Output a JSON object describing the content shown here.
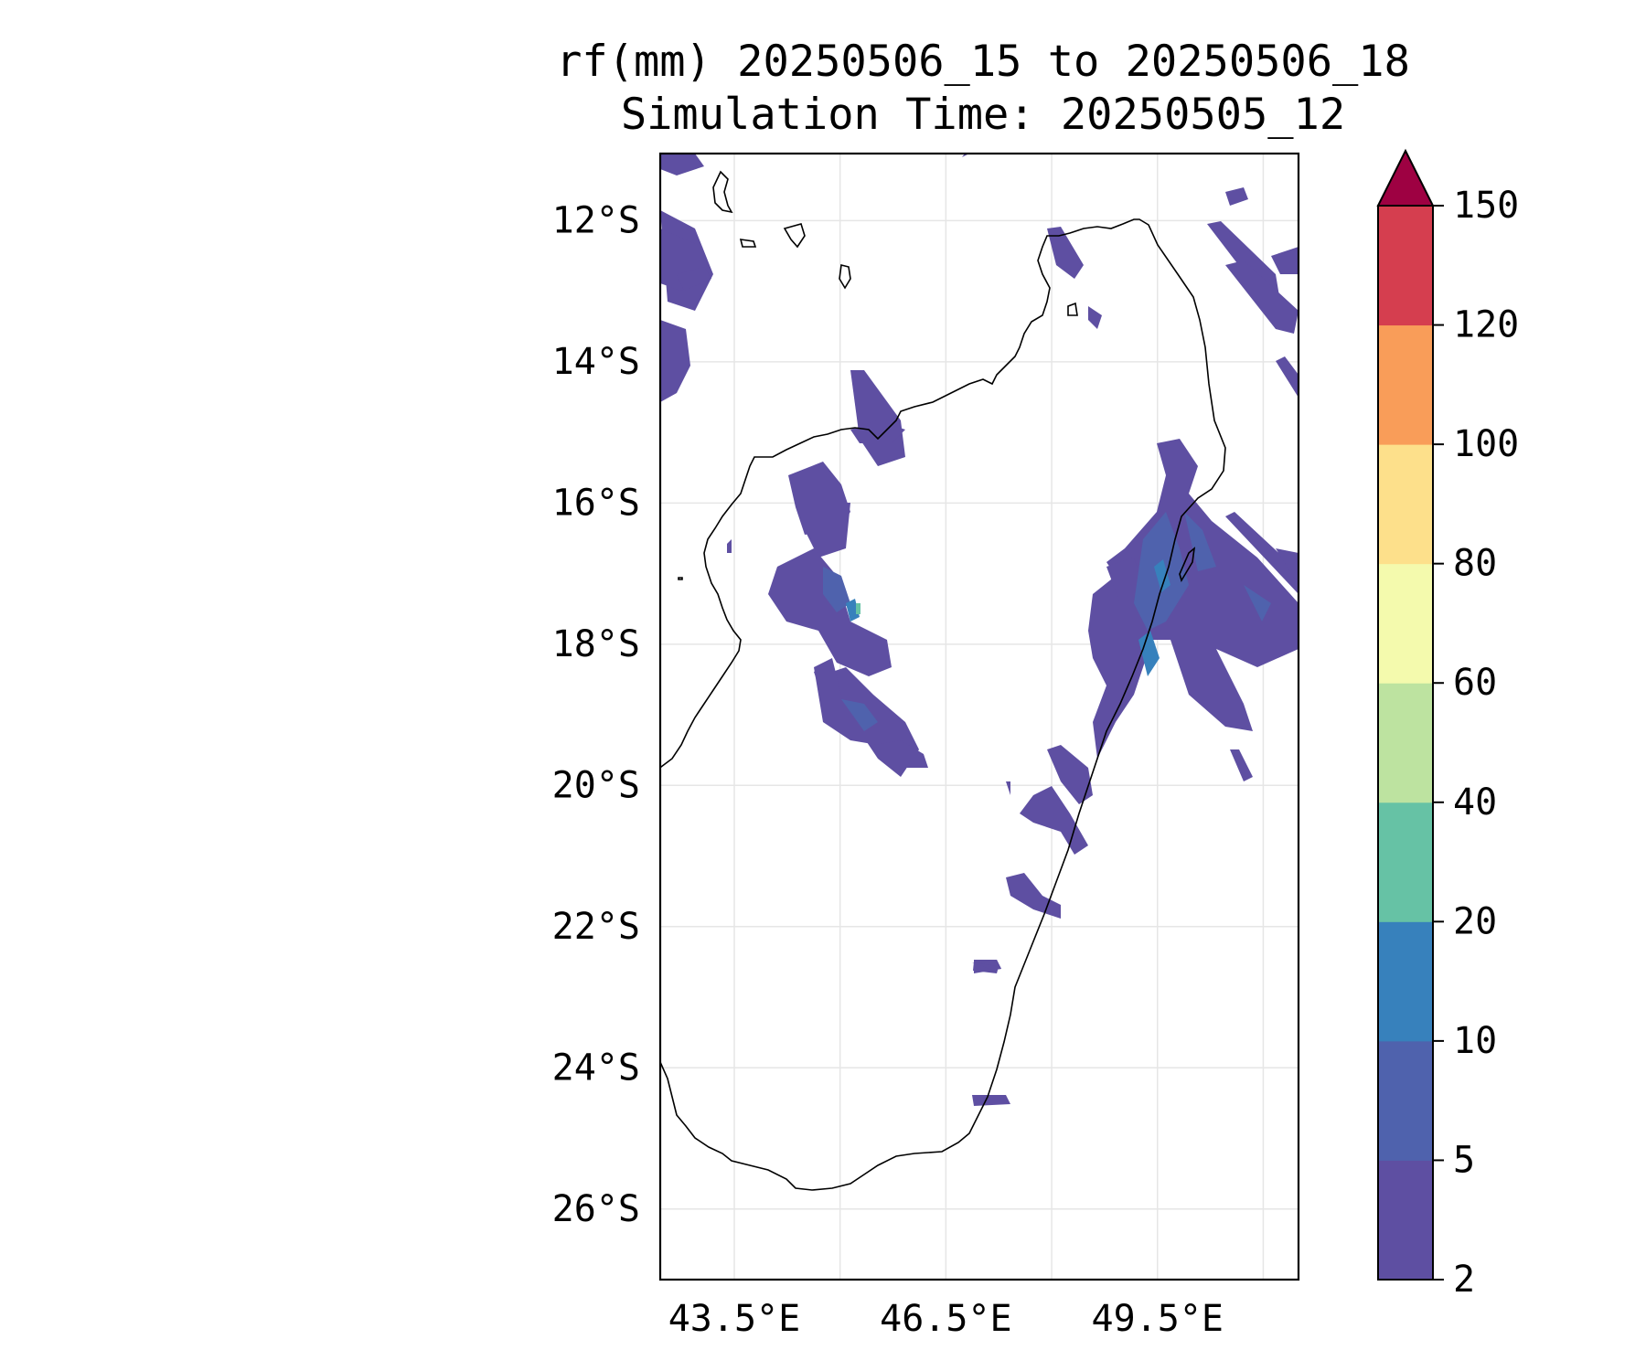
{
  "title": {
    "line1": "rf(mm) 20250506_15 to 20250506_18",
    "line2": "Simulation Time: 20250505_12"
  },
  "map": {
    "region": "Madagascar",
    "lat_ticks": [
      "12°S",
      "14°S",
      "16°S",
      "18°S",
      "20°S",
      "22°S",
      "24°S",
      "26°S"
    ],
    "lon_ticks": [
      "43.5°E",
      "46.5°E",
      "49.5°E"
    ],
    "lat_range": [
      -27,
      -11.05
    ],
    "lon_range": [
      42.45,
      51.5
    ],
    "gridlines": true,
    "coastline_color": "#000000",
    "rain_colors": [
      "#5e4fa2",
      "#4f62ad",
      "#3781bc",
      "#66c2a5"
    ]
  },
  "colorbar": {
    "levels": [
      "2",
      "5",
      "10",
      "20",
      "40",
      "60",
      "80",
      "100",
      "120",
      "150"
    ],
    "colors": [
      "#5e4fa2",
      "#4f62ad",
      "#3781bc",
      "#66c2a5",
      "#bde3a0",
      "#f4faad",
      "#fde08b",
      "#f99d59",
      "#d53e4f"
    ],
    "extend_color": "#9e0142",
    "extend": "max"
  }
}
